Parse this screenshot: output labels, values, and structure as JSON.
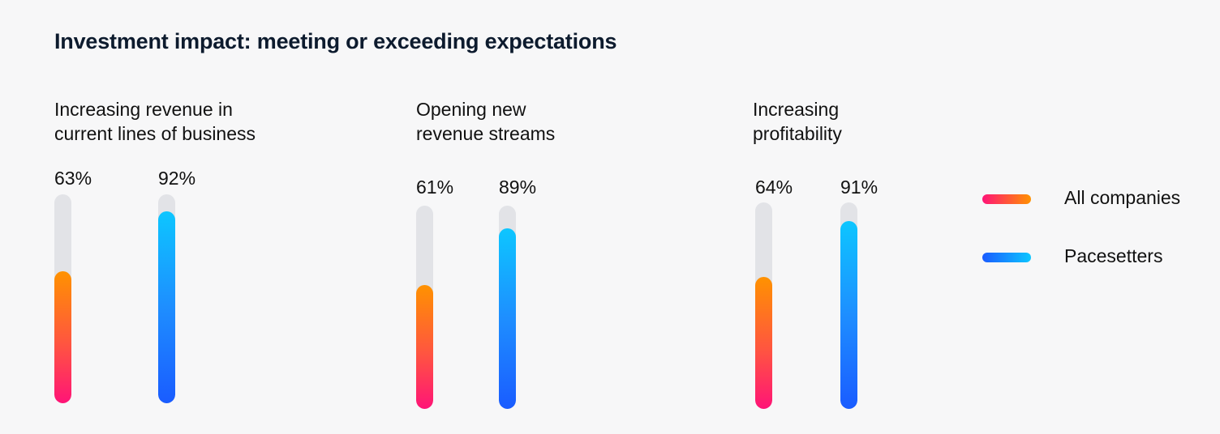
{
  "chart_data": {
    "type": "bar",
    "title": "Investment impact: meeting or exceeding expectations",
    "categories": [
      "Increasing revenue in\ncurrent lines of business",
      "Opening new\nrevenue streams",
      "Increasing\nprofitability"
    ],
    "series": [
      {
        "name": "All companies",
        "values": [
          63,
          61,
          64
        ],
        "labels": [
          "63%",
          "61%",
          "64%"
        ],
        "colors": [
          "#ff1477",
          "#ff9200"
        ]
      },
      {
        "name": "Pacesetters",
        "values": [
          92,
          89,
          91
        ],
        "labels": [
          "92%",
          "89%",
          "91%"
        ],
        "colors": [
          "#1a5cff",
          "#0dc6ff"
        ]
      }
    ],
    "ylim": [
      0,
      100
    ],
    "legend_position": "right"
  }
}
